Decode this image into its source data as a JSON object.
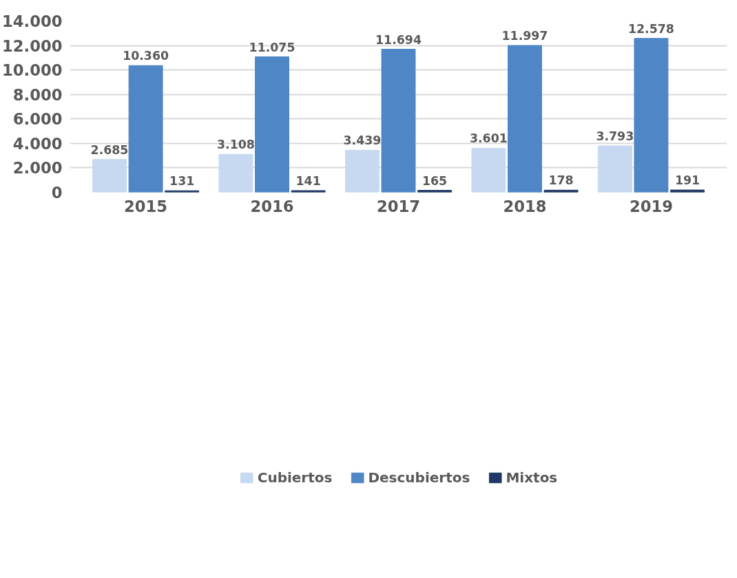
{
  "chart_data": {
    "type": "bar",
    "categories": [
      "2015",
      "2016",
      "2017",
      "2018",
      "2019"
    ],
    "series": [
      {
        "name": "Cubiertos",
        "color": "#c6d9f1",
        "values": [
          2685,
          3108,
          3439,
          3601,
          3793
        ],
        "value_labels": [
          "2.685",
          "3.108",
          "3.439",
          "3.601",
          "3.793"
        ]
      },
      {
        "name": "Descubiertos",
        "color": "#4f86c6",
        "values": [
          10360,
          11075,
          11694,
          11997,
          12578
        ],
        "value_labels": [
          "10.360",
          "11.075",
          "11.694",
          "11.997",
          "12.578"
        ]
      },
      {
        "name": "Mixtos",
        "color": "#1f3864",
        "values": [
          131,
          141,
          165,
          178,
          191
        ],
        "value_labels": [
          "131",
          "141",
          "165",
          "178",
          "191"
        ]
      }
    ],
    "ylim": [
      0,
      14000
    ],
    "yticks": [
      {
        "value": 0,
        "label": "0"
      },
      {
        "value": 2000,
        "label": "2.000"
      },
      {
        "value": 4000,
        "label": "4.000"
      },
      {
        "value": 6000,
        "label": "6.000"
      },
      {
        "value": 8000,
        "label": "8.000"
      },
      {
        "value": 10000,
        "label": "10.000"
      },
      {
        "value": 12000,
        "label": "12.000"
      },
      {
        "value": 14000,
        "label": "14.000"
      }
    ],
    "grid": "y",
    "legend": "bottom"
  }
}
